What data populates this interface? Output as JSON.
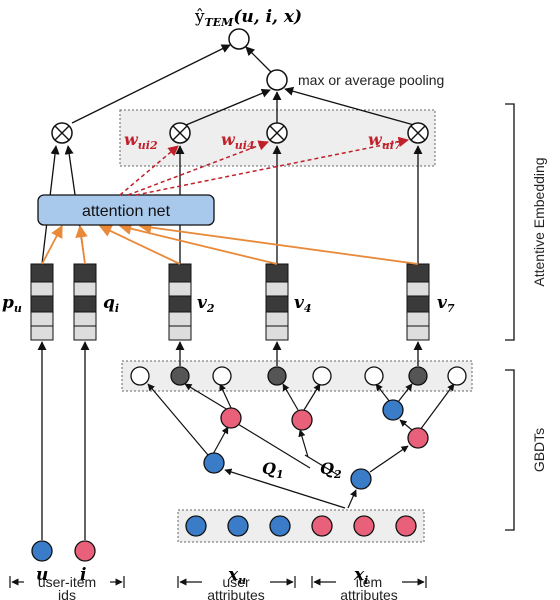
{
  "output_label": "ŷ",
  "output_sub": "TEM",
  "output_args": "(u, i, x)",
  "pooling_label": "max or average pooling",
  "attention_net_label": "attention net",
  "weights": [
    {
      "base": "w",
      "sub": "ui2"
    },
    {
      "base": "w",
      "sub": "ui4"
    },
    {
      "base": "w",
      "sub": "ui7"
    }
  ],
  "embeddings": [
    {
      "base": "p",
      "sub": "u"
    },
    {
      "base": "q",
      "sub": "i"
    },
    {
      "base": "v",
      "sub": "2"
    },
    {
      "base": "v",
      "sub": "4"
    },
    {
      "base": "v",
      "sub": "7"
    }
  ],
  "trees": [
    {
      "base": "Q",
      "sub": "1"
    },
    {
      "base": "Q",
      "sub": "2"
    }
  ],
  "inputs": [
    {
      "base": "u",
      "sub": ""
    },
    {
      "base": "i",
      "sub": ""
    },
    {
      "base": "x",
      "sub": "u"
    },
    {
      "base": "x",
      "sub": "i"
    }
  ],
  "groups": [
    {
      "line1": "user-item",
      "line2": "ids"
    },
    {
      "line1": "user",
      "line2": "attributes"
    },
    {
      "line1": "item",
      "line2": "attributes"
    }
  ],
  "side_labels": {
    "attentive": "Attentive Embedding",
    "gbdts": "GBDTs"
  },
  "colors": {
    "blue_node": "#3a7cc8",
    "pink_node": "#e8607a",
    "dark_leaf": "#555555",
    "attention_fill": "#a8c8ec",
    "orange_arrow": "#e88a3a",
    "red_dashed": "#c0202a",
    "panel_fill": "#eeeeee"
  }
}
